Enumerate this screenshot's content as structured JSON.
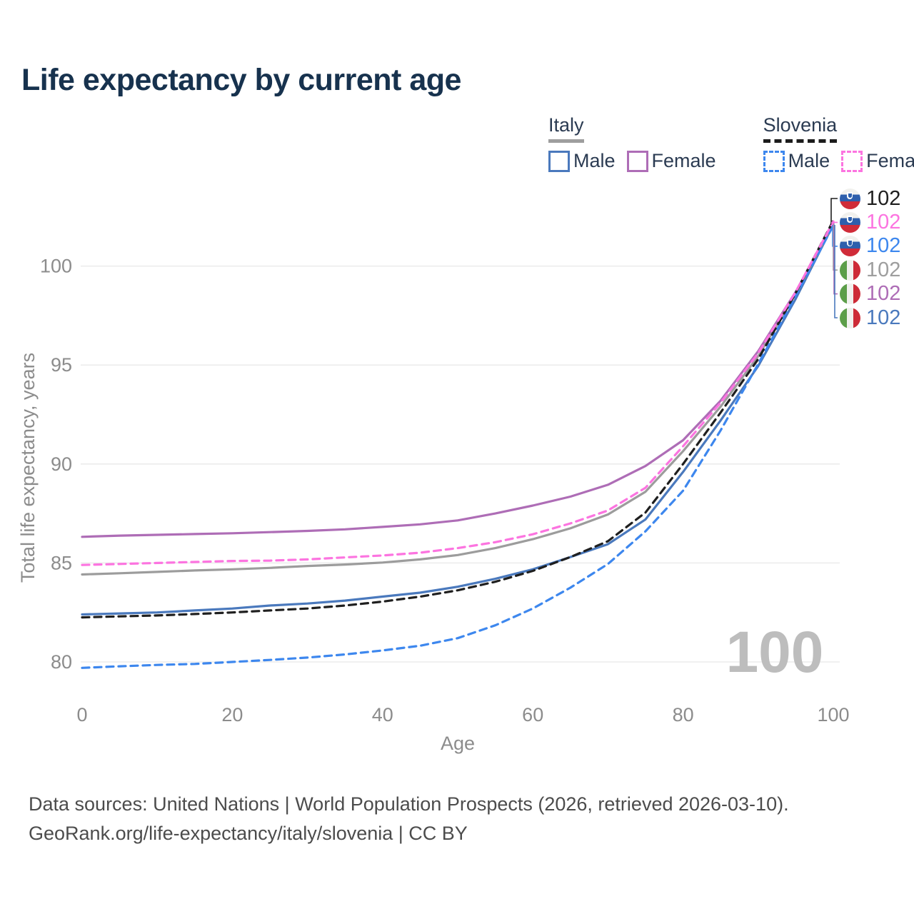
{
  "title": "Life expectancy by current age",
  "legend": {
    "groups": [
      {
        "label": "Italy",
        "line_style": "solid",
        "underline_color": "#9e9e9e",
        "items": [
          {
            "label": "Male",
            "color": "#4a79bd",
            "dashed": false
          },
          {
            "label": "Female",
            "color": "#ae6db6",
            "dashed": false
          }
        ]
      },
      {
        "label": "Slovenia",
        "line_style": "dashed",
        "underline_color": "#1c1c1c",
        "items": [
          {
            "label": "Male",
            "color": "#3d87ee",
            "dashed": true
          },
          {
            "label": "Female",
            "color": "#fc74e0",
            "dashed": true
          }
        ]
      }
    ]
  },
  "watermark": "100",
  "end_labels": [
    {
      "flag": "slovenia",
      "value": "102",
      "color": "#1f1f1f",
      "series": "Slovenia"
    },
    {
      "flag": "slovenia",
      "value": "102",
      "color": "#fc74e0",
      "series": "Slovenia Female"
    },
    {
      "flag": "slovenia",
      "value": "102",
      "color": "#3d87ee",
      "series": "Slovenia Male"
    },
    {
      "flag": "italy",
      "value": "102",
      "color": "#9e9e9e",
      "series": "Italy"
    },
    {
      "flag": "italy",
      "value": "102",
      "color": "#ae6db6",
      "series": "Italy Female"
    },
    {
      "flag": "italy",
      "value": "102",
      "color": "#4a79bd",
      "series": "Italy Male"
    }
  ],
  "footer": {
    "line1": "Data sources: United Nations | World Population Prospects (2026, retrieved 2026-03-10).",
    "line2": "GeoRank.org/life-expectancy/italy/slovenia | CC BY"
  },
  "chart_data": {
    "type": "line",
    "title": "Life expectancy by current age",
    "xlabel": "Age",
    "ylabel": "Total life expectancy, years",
    "xlim": [
      0,
      100
    ],
    "ylim": [
      79,
      102.5
    ],
    "x_ticks": [
      0,
      20,
      40,
      60,
      80,
      100
    ],
    "y_ticks": [
      80,
      85,
      90,
      95,
      100
    ],
    "grid": "horizontal-only",
    "legend_position": "top-right",
    "x": [
      0,
      5,
      10,
      15,
      20,
      25,
      30,
      35,
      40,
      45,
      50,
      55,
      60,
      65,
      70,
      75,
      80,
      85,
      90,
      95,
      100
    ],
    "series": [
      {
        "name": "Italy Male",
        "country": "Italy",
        "sex": "Male",
        "color": "#4a79bd",
        "dashed": false,
        "values": [
          82.4,
          82.45,
          82.5,
          82.6,
          82.7,
          82.85,
          82.95,
          83.1,
          83.3,
          83.5,
          83.8,
          84.2,
          84.68,
          85.3,
          85.95,
          87.2,
          89.6,
          92.2,
          94.95,
          98.35,
          102.1
        ]
      },
      {
        "name": "Italy",
        "country": "Italy",
        "sex": "Both",
        "color": "#9c9c9c",
        "dashed": false,
        "values": [
          84.42,
          84.48,
          84.55,
          84.62,
          84.68,
          84.75,
          84.85,
          84.92,
          85.02,
          85.18,
          85.4,
          85.75,
          86.2,
          86.75,
          87.45,
          88.6,
          90.65,
          92.9,
          95.45,
          98.6,
          102.15
        ]
      },
      {
        "name": "Italy Female",
        "country": "Italy",
        "sex": "Female",
        "color": "#ae6db6",
        "dashed": false,
        "values": [
          86.32,
          86.38,
          86.42,
          86.46,
          86.5,
          86.56,
          86.62,
          86.7,
          86.82,
          86.95,
          87.15,
          87.5,
          87.9,
          88.35,
          88.95,
          89.9,
          91.2,
          93.2,
          95.7,
          98.7,
          102.2
        ]
      },
      {
        "name": "Slovenia Male",
        "country": "Slovenia",
        "sex": "Male",
        "color": "#3d87ee",
        "dashed": true,
        "values": [
          79.7,
          79.78,
          79.85,
          79.9,
          80.0,
          80.1,
          80.22,
          80.38,
          80.58,
          80.82,
          81.2,
          81.85,
          82.7,
          83.75,
          84.95,
          86.6,
          88.65,
          91.7,
          95.05,
          98.5,
          102.05
        ]
      },
      {
        "name": "Slovenia",
        "country": "Slovenia",
        "sex": "Both",
        "color": "#1f1f1f",
        "dashed": true,
        "values": [
          82.25,
          82.3,
          82.35,
          82.42,
          82.5,
          82.6,
          82.7,
          82.85,
          83.05,
          83.3,
          83.62,
          84.05,
          84.6,
          85.3,
          86.1,
          87.55,
          90.0,
          92.6,
          95.3,
          98.65,
          102.3
        ]
      },
      {
        "name": "Slovenia Female",
        "country": "Slovenia",
        "sex": "Female",
        "color": "#fc74e0",
        "dashed": true,
        "values": [
          84.9,
          84.95,
          85.0,
          85.05,
          85.1,
          85.12,
          85.18,
          85.28,
          85.38,
          85.52,
          85.75,
          86.05,
          86.45,
          87.0,
          87.65,
          88.8,
          90.9,
          93.1,
          95.6,
          98.7,
          102.25
        ]
      }
    ]
  }
}
